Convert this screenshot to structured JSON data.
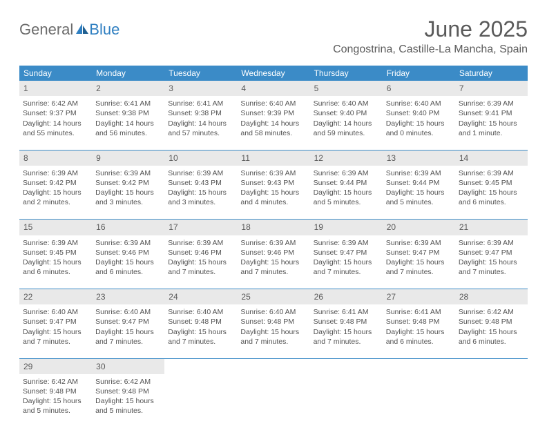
{
  "logo": {
    "part1": "General",
    "part2": "Blue"
  },
  "title": "June 2025",
  "location": "Congostrina, Castille-La Mancha, Spain",
  "colors": {
    "header_bg": "#3b8bc7",
    "header_text": "#ffffff",
    "daynum_bg": "#e9e9e9",
    "rule": "#3b8bc7",
    "logo_gray": "#6b6b6b",
    "logo_blue": "#2f7fc1"
  },
  "weekdays": [
    "Sunday",
    "Monday",
    "Tuesday",
    "Wednesday",
    "Thursday",
    "Friday",
    "Saturday"
  ],
  "weeks": [
    [
      {
        "n": "1",
        "sr": "6:42 AM",
        "ss": "9:37 PM",
        "dl": "14 hours and 55 minutes."
      },
      {
        "n": "2",
        "sr": "6:41 AM",
        "ss": "9:38 PM",
        "dl": "14 hours and 56 minutes."
      },
      {
        "n": "3",
        "sr": "6:41 AM",
        "ss": "9:38 PM",
        "dl": "14 hours and 57 minutes."
      },
      {
        "n": "4",
        "sr": "6:40 AM",
        "ss": "9:39 PM",
        "dl": "14 hours and 58 minutes."
      },
      {
        "n": "5",
        "sr": "6:40 AM",
        "ss": "9:40 PM",
        "dl": "14 hours and 59 minutes."
      },
      {
        "n": "6",
        "sr": "6:40 AM",
        "ss": "9:40 PM",
        "dl": "15 hours and 0 minutes."
      },
      {
        "n": "7",
        "sr": "6:39 AM",
        "ss": "9:41 PM",
        "dl": "15 hours and 1 minute."
      }
    ],
    [
      {
        "n": "8",
        "sr": "6:39 AM",
        "ss": "9:42 PM",
        "dl": "15 hours and 2 minutes."
      },
      {
        "n": "9",
        "sr": "6:39 AM",
        "ss": "9:42 PM",
        "dl": "15 hours and 3 minutes."
      },
      {
        "n": "10",
        "sr": "6:39 AM",
        "ss": "9:43 PM",
        "dl": "15 hours and 3 minutes."
      },
      {
        "n": "11",
        "sr": "6:39 AM",
        "ss": "9:43 PM",
        "dl": "15 hours and 4 minutes."
      },
      {
        "n": "12",
        "sr": "6:39 AM",
        "ss": "9:44 PM",
        "dl": "15 hours and 5 minutes."
      },
      {
        "n": "13",
        "sr": "6:39 AM",
        "ss": "9:44 PM",
        "dl": "15 hours and 5 minutes."
      },
      {
        "n": "14",
        "sr": "6:39 AM",
        "ss": "9:45 PM",
        "dl": "15 hours and 6 minutes."
      }
    ],
    [
      {
        "n": "15",
        "sr": "6:39 AM",
        "ss": "9:45 PM",
        "dl": "15 hours and 6 minutes."
      },
      {
        "n": "16",
        "sr": "6:39 AM",
        "ss": "9:46 PM",
        "dl": "15 hours and 6 minutes."
      },
      {
        "n": "17",
        "sr": "6:39 AM",
        "ss": "9:46 PM",
        "dl": "15 hours and 7 minutes."
      },
      {
        "n": "18",
        "sr": "6:39 AM",
        "ss": "9:46 PM",
        "dl": "15 hours and 7 minutes."
      },
      {
        "n": "19",
        "sr": "6:39 AM",
        "ss": "9:47 PM",
        "dl": "15 hours and 7 minutes."
      },
      {
        "n": "20",
        "sr": "6:39 AM",
        "ss": "9:47 PM",
        "dl": "15 hours and 7 minutes."
      },
      {
        "n": "21",
        "sr": "6:39 AM",
        "ss": "9:47 PM",
        "dl": "15 hours and 7 minutes."
      }
    ],
    [
      {
        "n": "22",
        "sr": "6:40 AM",
        "ss": "9:47 PM",
        "dl": "15 hours and 7 minutes."
      },
      {
        "n": "23",
        "sr": "6:40 AM",
        "ss": "9:47 PM",
        "dl": "15 hours and 7 minutes."
      },
      {
        "n": "24",
        "sr": "6:40 AM",
        "ss": "9:48 PM",
        "dl": "15 hours and 7 minutes."
      },
      {
        "n": "25",
        "sr": "6:40 AM",
        "ss": "9:48 PM",
        "dl": "15 hours and 7 minutes."
      },
      {
        "n": "26",
        "sr": "6:41 AM",
        "ss": "9:48 PM",
        "dl": "15 hours and 7 minutes."
      },
      {
        "n": "27",
        "sr": "6:41 AM",
        "ss": "9:48 PM",
        "dl": "15 hours and 6 minutes."
      },
      {
        "n": "28",
        "sr": "6:42 AM",
        "ss": "9:48 PM",
        "dl": "15 hours and 6 minutes."
      }
    ],
    [
      {
        "n": "29",
        "sr": "6:42 AM",
        "ss": "9:48 PM",
        "dl": "15 hours and 5 minutes."
      },
      {
        "n": "30",
        "sr": "6:42 AM",
        "ss": "9:48 PM",
        "dl": "15 hours and 5 minutes."
      },
      null,
      null,
      null,
      null,
      null
    ]
  ],
  "labels": {
    "sunrise": "Sunrise: ",
    "sunset": "Sunset: ",
    "daylight": "Daylight: "
  }
}
